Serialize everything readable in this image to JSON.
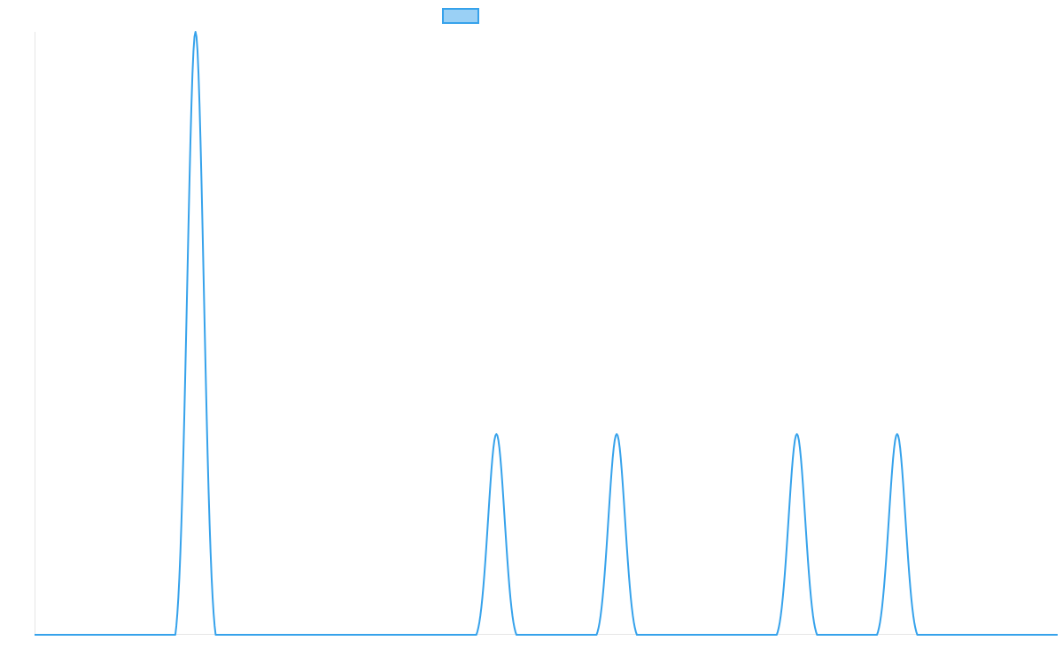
{
  "chart_data": {
    "type": "line",
    "title": "",
    "xlabel": "",
    "ylabel": "",
    "xlim": [
      0,
      1
    ],
    "ylim": [
      0,
      1
    ],
    "grid": false,
    "legend": {
      "position": "top-center",
      "entries": [
        {
          "name": "",
          "color": "#36a2eb",
          "fill": "#9ad0f5"
        }
      ]
    },
    "series": [
      {
        "name": "",
        "color": "#36a2eb",
        "peaks": [
          {
            "x_start": 0.1376,
            "x_center": 0.1573,
            "x_end": 0.177,
            "height": 1.0
          },
          {
            "x_start": 0.4318,
            "x_center": 0.4514,
            "x_end": 0.471,
            "height": 0.333
          },
          {
            "x_start": 0.5493,
            "x_center": 0.569,
            "x_end": 0.5887,
            "height": 0.333
          },
          {
            "x_start": 0.7254,
            "x_center": 0.7451,
            "x_end": 0.7648,
            "height": 0.333
          },
          {
            "x_start": 0.8234,
            "x_center": 0.8431,
            "x_end": 0.8628,
            "height": 0.333
          }
        ]
      }
    ]
  }
}
